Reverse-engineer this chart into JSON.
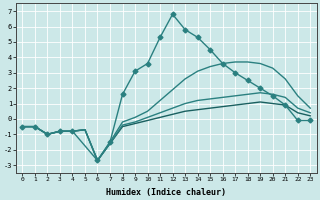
{
  "xlabel": "Humidex (Indice chaleur)",
  "xlim": [
    -0.5,
    23.5
  ],
  "ylim": [
    -3.5,
    7.5
  ],
  "yticks": [
    -3,
    -2,
    -1,
    0,
    1,
    2,
    3,
    4,
    5,
    6,
    7
  ],
  "xticks": [
    0,
    1,
    2,
    3,
    4,
    5,
    6,
    7,
    8,
    9,
    10,
    11,
    12,
    13,
    14,
    15,
    16,
    17,
    18,
    19,
    20,
    21,
    22,
    23
  ],
  "bg_color": "#cce8e8",
  "grid_color": "#ffffff",
  "lines": [
    {
      "x": [
        0,
        1,
        2,
        3,
        4,
        5,
        6,
        7,
        8,
        9,
        10,
        11,
        12,
        13,
        14,
        15,
        16,
        17,
        18,
        19,
        20,
        21,
        22,
        23
      ],
      "y": [
        -0.5,
        -0.5,
        -1.0,
        -0.8,
        -0.8,
        -0.7,
        -2.7,
        -1.6,
        -0.5,
        -0.3,
        -0.1,
        0.1,
        0.3,
        0.5,
        0.6,
        0.7,
        0.8,
        0.9,
        1.0,
        1.1,
        1.0,
        0.9,
        0.4,
        0.2
      ],
      "marker": null,
      "color": "#1a6060",
      "lw": 1.0
    },
    {
      "x": [
        0,
        1,
        2,
        3,
        4,
        5,
        6,
        7,
        8,
        9,
        10,
        11,
        12,
        13,
        14,
        15,
        16,
        17,
        18,
        19,
        20,
        21,
        22,
        23
      ],
      "y": [
        -0.5,
        -0.5,
        -1.0,
        -0.8,
        -0.8,
        -0.7,
        -2.7,
        -1.6,
        -0.4,
        -0.2,
        0.1,
        0.4,
        0.7,
        1.0,
        1.2,
        1.3,
        1.4,
        1.5,
        1.6,
        1.7,
        1.6,
        1.4,
        0.7,
        0.4
      ],
      "marker": null,
      "color": "#2a8080",
      "lw": 1.0
    },
    {
      "x": [
        0,
        1,
        2,
        3,
        4,
        5,
        6,
        7,
        8,
        9,
        10,
        11,
        12,
        13,
        14,
        15,
        16,
        17,
        18,
        19,
        20,
        21,
        22,
        23
      ],
      "y": [
        -0.5,
        -0.5,
        -1.0,
        -0.8,
        -0.8,
        -0.7,
        -2.7,
        -1.5,
        -0.2,
        0.1,
        0.5,
        1.2,
        1.9,
        2.6,
        3.1,
        3.4,
        3.6,
        3.7,
        3.7,
        3.6,
        3.3,
        2.6,
        1.5,
        0.7
      ],
      "marker": null,
      "color": "#2a8080",
      "lw": 1.0
    },
    {
      "x": [
        0,
        1,
        2,
        3,
        4,
        6,
        7,
        8,
        9,
        10,
        11,
        12,
        13,
        14,
        15,
        16,
        17,
        18,
        19,
        20,
        21,
        22,
        23
      ],
      "y": [
        -0.5,
        -0.5,
        -1.0,
        -0.8,
        -0.8,
        -2.7,
        -1.5,
        1.6,
        3.1,
        3.6,
        5.3,
        6.8,
        5.8,
        5.3,
        4.5,
        3.6,
        3.0,
        2.5,
        2.0,
        1.5,
        0.9,
        -0.1,
        -0.1
      ],
      "marker": "D",
      "marker_size": 2.5,
      "color": "#2a8080",
      "lw": 1.0
    }
  ]
}
